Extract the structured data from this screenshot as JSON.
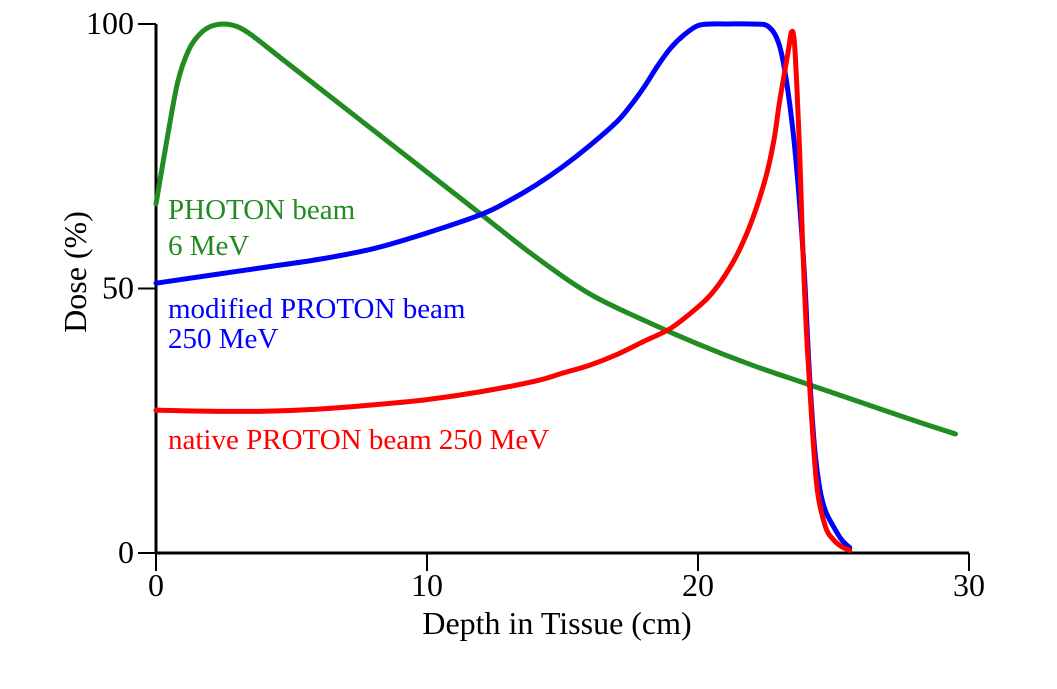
{
  "chart_data": {
    "type": "line",
    "title": "",
    "xlabel": "Depth in Tissue (cm)",
    "ylabel": "Dose (%)",
    "xlim": [
      0,
      30
    ],
    "ylim": [
      0,
      100
    ],
    "xticks": [
      "0",
      "10",
      "20",
      "30"
    ],
    "xtick_values": [
      0,
      10,
      20,
      30
    ],
    "yticks": [
      "0",
      "50",
      "100"
    ],
    "ytick_values": [
      0,
      50,
      100
    ],
    "grid": false,
    "legend": "inline labels, left side",
    "series": [
      {
        "name": "PHOTON beam 6 MeV",
        "label_lines": [
          "PHOTON beam",
          "6 MeV"
        ],
        "color": "#228b22",
        "x": [
          0,
          0.4,
          0.8,
          1.2,
          1.6,
          2.0,
          2.5,
          3.0,
          3.5,
          4.5,
          6,
          8,
          10,
          12,
          14,
          16,
          18,
          20,
          22,
          24,
          26,
          28,
          29.5
        ],
        "y": [
          66,
          78,
          89,
          95,
          98,
          99.5,
          100,
          99.5,
          98,
          94,
          88,
          80,
          72,
          64,
          56,
          49,
          44,
          39.5,
          35.5,
          32,
          28.5,
          25,
          22.5
        ]
      },
      {
        "name": "modified PROTON beam 250 MeV",
        "label_lines": [
          "modified PROTON beam",
          "250 MeV"
        ],
        "color": "#0000ff",
        "x": [
          0,
          2,
          4,
          6,
          8,
          10,
          12,
          13,
          14,
          15,
          16,
          17,
          17.5,
          18,
          18.5,
          19,
          19.5,
          20,
          20.5,
          21,
          22,
          22.6,
          23,
          23.3,
          23.6,
          23.9,
          24.1,
          24.3,
          24.5,
          24.7,
          25.0,
          25.3,
          25.6
        ],
        "y": [
          51,
          52.5,
          54,
          55.5,
          57.5,
          60.5,
          64,
          66.5,
          69.5,
          73,
          77,
          81.5,
          84.5,
          88,
          92,
          95.5,
          98,
          99.7,
          100,
          100,
          100,
          99.5,
          96,
          88,
          75,
          55,
          35,
          20,
          12,
          8,
          5,
          2.5,
          1
        ]
      },
      {
        "name": "native PROTON beam 250 MeV",
        "label_lines": [
          "native PROTON beam 250 MeV"
        ],
        "color": "#ff0000",
        "x": [
          0,
          2,
          4,
          6,
          8,
          10,
          12,
          14,
          15,
          16,
          17,
          18,
          19,
          20,
          20.5,
          21,
          21.5,
          22,
          22.5,
          22.8,
          23.0,
          23.2,
          23.35,
          23.45,
          23.55,
          23.65,
          23.75,
          23.85,
          24.0,
          24.2,
          24.4,
          24.7,
          25.0,
          25.3,
          25.6
        ],
        "y": [
          27,
          26.8,
          26.8,
          27.2,
          28,
          29,
          30.5,
          32.5,
          34,
          35.5,
          37.5,
          40,
          42.5,
          46.5,
          49,
          52.5,
          57,
          63,
          71,
          78,
          85,
          91,
          95.5,
          98.5,
          97,
          88,
          76,
          60,
          42,
          25,
          12,
          5,
          2.5,
          1.2,
          0.5
        ]
      }
    ]
  }
}
